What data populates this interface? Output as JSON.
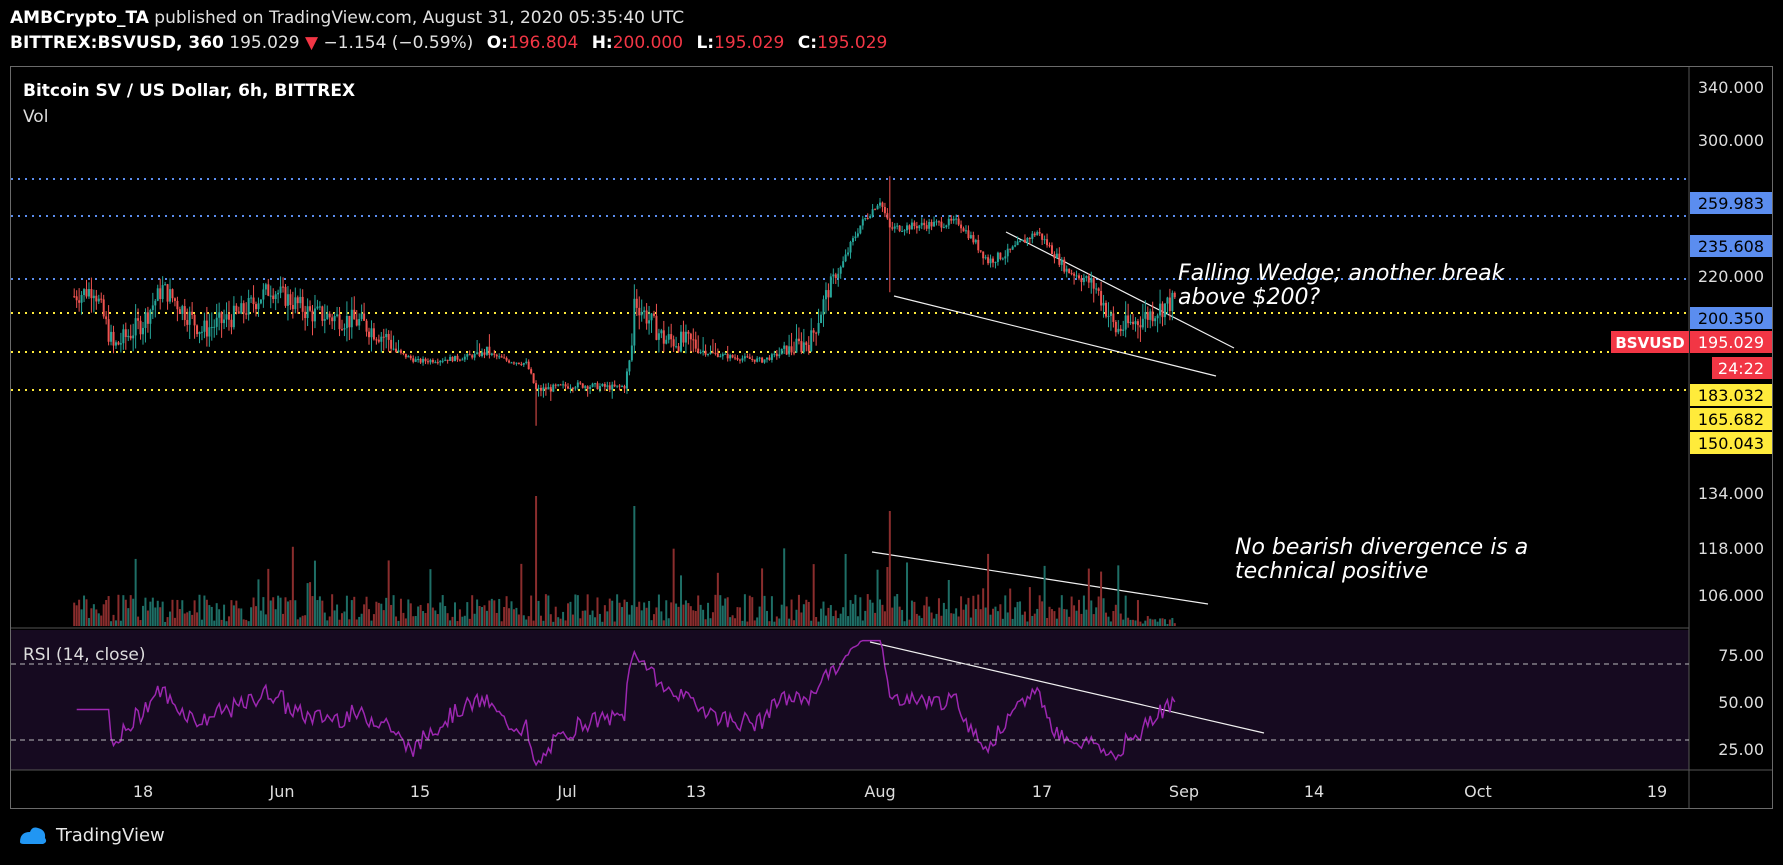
{
  "header": {
    "author": "AMBCrypto_TA",
    "published": "published on TradingView.com, August 31, 2020 05:35:40 UTC",
    "symbol_line": "BITTREX:BSVUSD, 360",
    "price": "195.029",
    "change_arrow": "▼",
    "change": "−1.154 (−0.59%)",
    "o_label": "O:",
    "o_value": "196.804",
    "h_label": "H:",
    "h_value": "200.000",
    "l_label": "L:",
    "l_value": "195.029",
    "c_label": "C:",
    "c_value": "195.029"
  },
  "chart_title": "Bitcoin SV / US Dollar, 6h, BITTREX",
  "vol_label": "Vol",
  "rsi_label": "RSI (14, close)",
  "annotations": {
    "wedge_line1": "Falling Wedge; another break",
    "wedge_line2": "above $200?",
    "div_line1": "No bearish divergence is a",
    "div_line2": "technical positive"
  },
  "footer": {
    "brand": "TradingView",
    "logo_icon": "tradingview-logo-icon"
  },
  "colors": {
    "up": "#26a69a",
    "down": "#ef5350",
    "blue_level": "#5b8def",
    "yellow_level": "#ffeb3b",
    "rsi": "#9c27b0",
    "rsi_band": "#160a20",
    "price_badge": "#f23645"
  },
  "chart_data": {
    "type": "candlestick",
    "x_ticks": [
      "18",
      "Jun",
      "15",
      "Jul",
      "13",
      "Aug",
      "17",
      "Sep",
      "14",
      "Oct",
      "19"
    ],
    "y_ticks": [
      "340.000",
      "300.000",
      "220.000",
      "134.000",
      "118.000",
      "106.000"
    ],
    "rsi_ticks": [
      "75.00",
      "50.00",
      "25.00"
    ],
    "levels_blue": [
      {
        "label": "259.983",
        "value": 259.983
      },
      {
        "label": "235.608",
        "value": 235.608
      },
      {
        "label": "200.350",
        "value": 200.35
      }
    ],
    "levels_yellow": [
      {
        "label": "183.032",
        "value": 183.032
      },
      {
        "label": "165.682",
        "value": 165.682
      },
      {
        "label": "150.043",
        "value": 150.043
      }
    ],
    "last_price": {
      "symbol": "BSVUSD",
      "label": "195.029",
      "value": 195.029
    },
    "countdown": "24:22",
    "rsi_overbought": 70,
    "rsi_oversold": 30,
    "anchors": [
      {
        "date": "2020-05-11",
        "c": 196
      },
      {
        "date": "2020-05-13",
        "c": 198
      },
      {
        "date": "2020-05-15",
        "c": 184
      },
      {
        "date": "2020-05-18",
        "c": 190
      },
      {
        "date": "2020-05-20",
        "c": 198
      },
      {
        "date": "2020-05-24",
        "c": 188
      },
      {
        "date": "2020-05-28",
        "c": 192
      },
      {
        "date": "2020-05-31",
        "c": 198
      },
      {
        "date": "2020-06-04",
        "c": 192
      },
      {
        "date": "2020-06-09",
        "c": 190
      },
      {
        "date": "2020-06-12",
        "c": 186
      },
      {
        "date": "2020-06-15",
        "c": 174
      },
      {
        "date": "2020-06-19",
        "c": 177
      },
      {
        "date": "2020-06-22",
        "c": 182
      },
      {
        "date": "2020-06-24",
        "c": 175
      },
      {
        "date": "2020-06-26",
        "c": 172
      },
      {
        "date": "2020-06-27",
        "c": 150
      },
      {
        "date": "2020-07-01",
        "c": 154
      },
      {
        "date": "2020-07-05",
        "c": 152
      },
      {
        "date": "2020-07-06",
        "c": 153
      },
      {
        "date": "2020-07-07",
        "c": 195
      },
      {
        "date": "2020-07-10",
        "c": 186
      },
      {
        "date": "2020-07-13",
        "c": 185
      },
      {
        "date": "2020-07-17",
        "c": 178
      },
      {
        "date": "2020-07-20",
        "c": 175
      },
      {
        "date": "2020-07-22",
        "c": 182
      },
      {
        "date": "2020-07-25",
        "c": 186
      },
      {
        "date": "2020-07-28",
        "c": 206
      },
      {
        "date": "2020-07-30",
        "c": 230
      },
      {
        "date": "2020-08-01",
        "c": 246
      },
      {
        "date": "2020-08-02",
        "c": 228
      },
      {
        "date": "2020-08-05",
        "c": 230
      },
      {
        "date": "2020-08-09",
        "c": 232
      },
      {
        "date": "2020-08-12",
        "c": 210
      },
      {
        "date": "2020-08-14",
        "c": 214
      },
      {
        "date": "2020-08-17",
        "c": 226
      },
      {
        "date": "2020-08-20",
        "c": 205
      },
      {
        "date": "2020-08-23",
        "c": 198
      },
      {
        "date": "2020-08-25",
        "c": 188
      },
      {
        "date": "2020-08-27",
        "c": 190
      },
      {
        "date": "2020-08-31",
        "c": 195.029
      }
    ]
  }
}
